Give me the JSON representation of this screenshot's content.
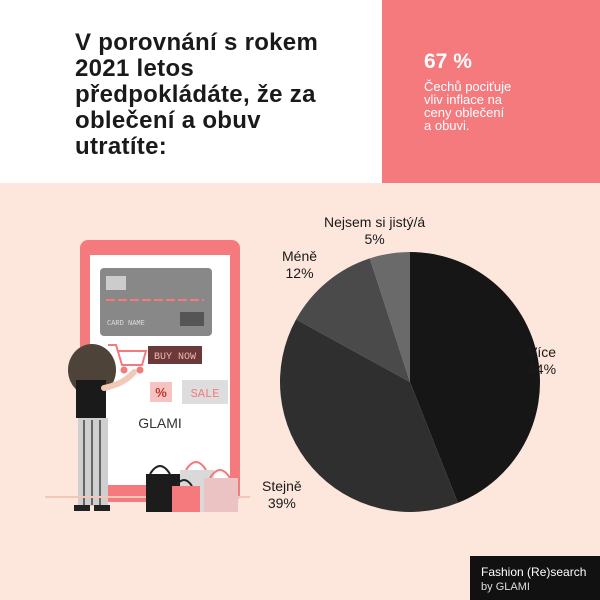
{
  "header": {
    "title_lines": [
      "V porovnání s rokem",
      "2021 letos",
      "předpokládáte, že za",
      "oblečení a obuv",
      "utratíte:"
    ]
  },
  "stat": {
    "value": "67 %",
    "text_lines": [
      "Čechů pociťuje",
      "vliv inflace na",
      "ceny oblečení",
      "a obuvi."
    ]
  },
  "illustration": {
    "card_name": "CARD NAME",
    "buy_now": "BUY NOW",
    "percent": "%",
    "sale": "SALE",
    "brand": "GLAMI"
  },
  "brand": {
    "line1": "Fashion (Re)search",
    "line2_prefix": "by",
    "line2_brand": "GLAMI"
  },
  "chart_data": {
    "type": "pie",
    "categories": [
      "Více",
      "Stejně",
      "Méně",
      "Nejsem si jistý/á"
    ],
    "values": [
      44,
      39,
      12,
      5
    ],
    "value_labels": [
      "44%",
      "39%",
      "12%",
      "5%"
    ],
    "colors": [
      "#161616",
      "#2f2f2f",
      "#4a4a4a",
      "#6a6a6a"
    ]
  }
}
